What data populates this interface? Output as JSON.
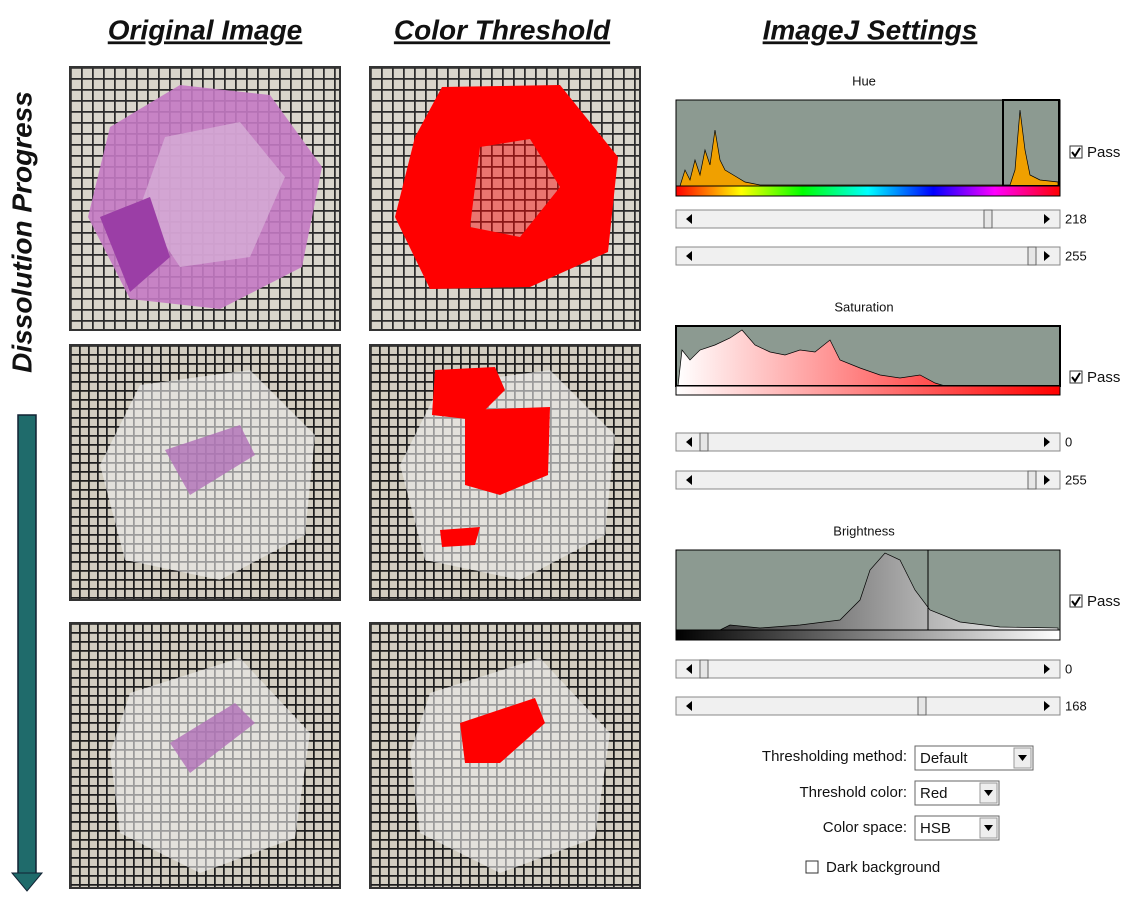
{
  "headers": [
    "Original Image",
    "Color Threshold",
    "ImageJ Settings"
  ],
  "side_label": "Dissolution Progress",
  "panels": [
    {
      "title": "Hue",
      "pass": "Pass",
      "sliders": [
        218,
        255
      ]
    },
    {
      "title": "Saturation",
      "pass": "Pass",
      "sliders": [
        0,
        255
      ]
    },
    {
      "title": "Brightness",
      "pass": "Pass",
      "sliders": [
        0,
        168
      ]
    }
  ],
  "settings": [
    {
      "label": "Thresholding method:",
      "value": "Default"
    },
    {
      "label": "Threshold color:",
      "value": "Red"
    },
    {
      "label": "Color space:",
      "value": "HSB"
    }
  ],
  "dark_background": "Dark background"
}
